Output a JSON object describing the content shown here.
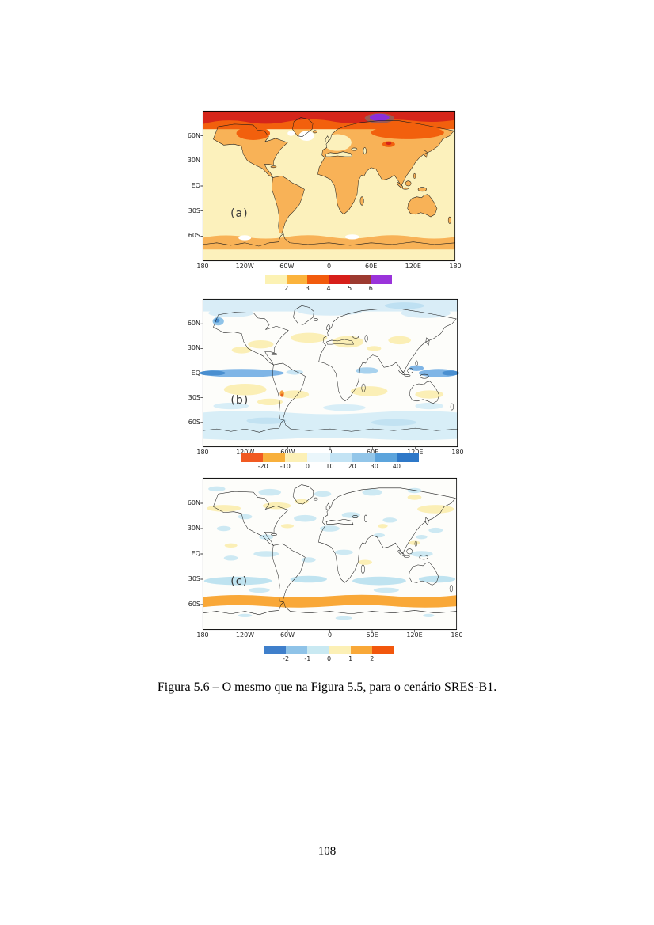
{
  "page": {
    "caption": "Figura 5.6 – O mesmo que na Figura 5.5, para o cenário SRES-B1.",
    "page_number": "108"
  },
  "maps": {
    "axis": {
      "y_ticks": [
        "60N",
        "30N",
        "EQ",
        "30S",
        "60S"
      ],
      "x_ticks": [
        "180",
        "120W",
        "60W",
        "0",
        "60E",
        "120E",
        "180"
      ]
    },
    "panels": [
      {
        "label": "(a)",
        "colorbar": {
          "colors": [
            "#FCF2B4",
            "#FBB33C",
            "#F25B0D",
            "#D71F1A",
            "#9C3A30",
            "#9A33DA"
          ],
          "ticks": [
            "2",
            "3",
            "4",
            "5",
            "6"
          ]
        }
      },
      {
        "label": "(b)",
        "colorbar": {
          "colors": [
            "#F15A22",
            "#F8B03C",
            "#FCF0B6",
            "#EAF6FB",
            "#C3E3F4",
            "#93C6E9",
            "#5CA4DC",
            "#2E78C8"
          ],
          "ticks": [
            "-20",
            "-10",
            "0",
            "10",
            "20",
            "30",
            "40"
          ]
        }
      },
      {
        "label": "(c)",
        "colorbar": {
          "colors": [
            "#3F7FCB",
            "#8FC3E8",
            "#C9E9F2",
            "#FCF0B6",
            "#F9A838",
            "#F2570D"
          ],
          "ticks": [
            "-2",
            "-1",
            "0",
            "1",
            "2"
          ]
        }
      }
    ]
  }
}
